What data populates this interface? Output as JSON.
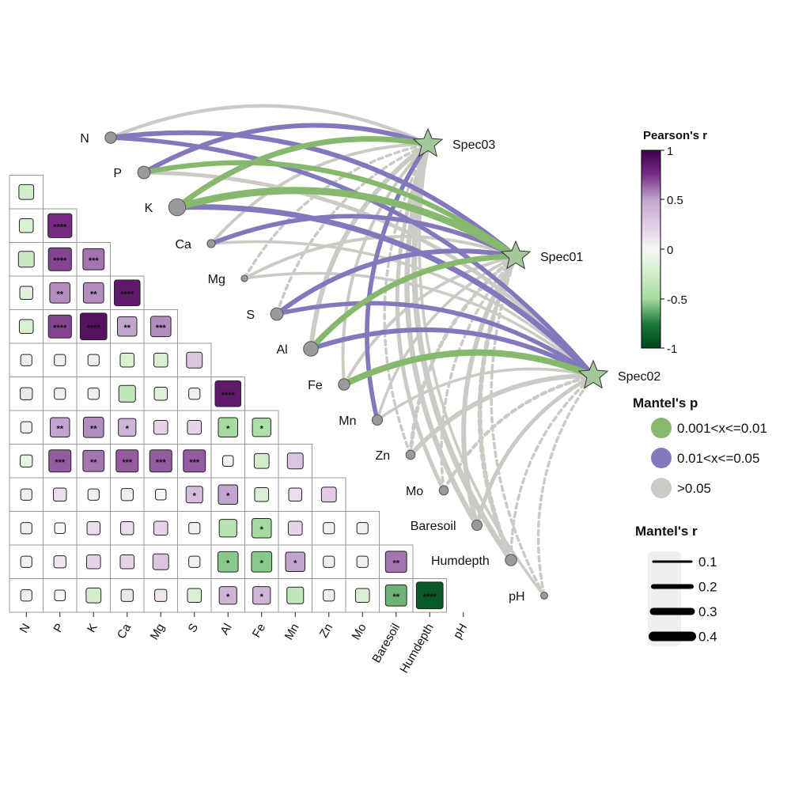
{
  "chart_data": {
    "type": "heatmap",
    "variables": [
      "N",
      "P",
      "K",
      "Ca",
      "Mg",
      "S",
      "Al",
      "Fe",
      "Mn",
      "Zn",
      "Mo",
      "Baresoil",
      "Humdepth",
      "pH"
    ],
    "correlation_lower": [
      [
        -0.25
      ],
      [
        -0.2,
        0.75
      ],
      [
        -0.3,
        0.7,
        0.6
      ],
      [
        -0.15,
        0.55,
        0.55,
        0.85
      ],
      [
        -0.2,
        0.7,
        0.9,
        0.5,
        0.55
      ],
      [
        0.05,
        0.05,
        0.05,
        -0.2,
        -0.2,
        0.3
      ],
      [
        0.1,
        0.05,
        0.05,
        -0.35,
        -0.15,
        0.05,
        0.85
      ],
      [
        0.05,
        0.5,
        0.55,
        0.4,
        0.2,
        0.2,
        -0.5,
        -0.45
      ],
      [
        -0.1,
        0.65,
        0.6,
        0.65,
        0.65,
        0.65,
        0.02,
        -0.25,
        0.3
      ],
      [
        0.05,
        0.15,
        0.05,
        -0.1,
        0.02,
        0.35,
        0.5,
        -0.2,
        0.15,
        0.25
      ],
      [
        0.05,
        0.02,
        0.15,
        0.15,
        0.2,
        0.05,
        -0.4,
        -0.5,
        0.2,
        0.05,
        0.05
      ],
      [
        0.05,
        0.1,
        0.2,
        0.2,
        0.3,
        0.05,
        -0.55,
        -0.55,
        0.5,
        0.05,
        0.05,
        0.6
      ],
      [
        0.05,
        0.02,
        -0.25,
        0.1,
        0.1,
        -0.2,
        0.4,
        0.4,
        -0.35,
        0.05,
        -0.2,
        -0.6,
        -0.9
      ]
    ],
    "significance_lower": [
      [
        ""
      ],
      [
        "",
        "****"
      ],
      [
        "",
        "****",
        "***"
      ],
      [
        "",
        "**",
        "**",
        "****"
      ],
      [
        "",
        "****",
        "****",
        "**",
        "***"
      ],
      [
        "",
        "",
        "",
        "",
        "",
        ""
      ],
      [
        "",
        "",
        "",
        "",
        "",
        "",
        "****"
      ],
      [
        "",
        "**",
        "**",
        "*",
        "",
        "",
        "*",
        "*"
      ],
      [
        "",
        "***",
        "**",
        "***",
        "***",
        "***",
        "",
        "",
        ""
      ],
      [
        "",
        "",
        "",
        "",
        "",
        "*",
        "*",
        "",
        "",
        ""
      ],
      [
        "",
        "",
        "",
        "",
        "",
        "",
        "",
        "*",
        "",
        "",
        ""
      ],
      [
        "",
        "",
        "",
        "",
        "",
        "",
        "*",
        "*",
        "*",
        "",
        "",
        "**"
      ],
      [
        "",
        "",
        "",
        "",
        "",
        "",
        "*",
        "*",
        "",
        "",
        "",
        "**",
        "****"
      ]
    ],
    "species": [
      "Spec03",
      "Spec01",
      "Spec02"
    ],
    "mantel": [
      {
        "spec": "Spec03",
        "env": "N",
        "r": 0.12,
        "p_class": "gray"
      },
      {
        "spec": "Spec03",
        "env": "P",
        "r": 0.2,
        "p_class": "purple"
      },
      {
        "spec": "Spec03",
        "env": "K",
        "r": 0.25,
        "p_class": "green"
      },
      {
        "spec": "Spec03",
        "env": "Ca",
        "r": 0.1,
        "p_class": "gray"
      },
      {
        "spec": "Spec03",
        "env": "Mg",
        "r": 0.08,
        "p_class": "gray",
        "dashed": true
      },
      {
        "spec": "Spec03",
        "env": "S",
        "r": 0.08,
        "p_class": "gray",
        "dashed": true
      },
      {
        "spec": "Spec03",
        "env": "Al",
        "r": 0.2,
        "p_class": "gray"
      },
      {
        "spec": "Spec03",
        "env": "Fe",
        "r": 0.1,
        "p_class": "gray"
      },
      {
        "spec": "Spec03",
        "env": "Mn",
        "r": 0.18,
        "p_class": "purple"
      },
      {
        "spec": "Spec03",
        "env": "Zn",
        "r": 0.08,
        "p_class": "gray",
        "dashed": true
      },
      {
        "spec": "Spec03",
        "env": "Mo",
        "r": 0.15,
        "p_class": "gray"
      },
      {
        "spec": "Spec03",
        "env": "Baresoil",
        "r": 0.22,
        "p_class": "gray"
      },
      {
        "spec": "Spec03",
        "env": "Humdepth",
        "r": 0.25,
        "p_class": "gray"
      },
      {
        "spec": "Spec03",
        "env": "pH",
        "r": 0.08,
        "p_class": "gray"
      },
      {
        "spec": "Spec01",
        "env": "N",
        "r": 0.2,
        "p_class": "purple"
      },
      {
        "spec": "Spec01",
        "env": "P",
        "r": 0.22,
        "p_class": "green"
      },
      {
        "spec": "Spec01",
        "env": "K",
        "r": 0.35,
        "p_class": "green"
      },
      {
        "spec": "Spec01",
        "env": "Ca",
        "r": 0.18,
        "p_class": "purple"
      },
      {
        "spec": "Spec01",
        "env": "Mg",
        "r": 0.1,
        "p_class": "gray"
      },
      {
        "spec": "Spec01",
        "env": "S",
        "r": 0.2,
        "p_class": "purple"
      },
      {
        "spec": "Spec01",
        "env": "Al",
        "r": 0.25,
        "p_class": "green"
      },
      {
        "spec": "Spec01",
        "env": "Fe",
        "r": 0.1,
        "p_class": "gray"
      },
      {
        "spec": "Spec01",
        "env": "Mn",
        "r": 0.08,
        "p_class": "gray"
      },
      {
        "spec": "Spec01",
        "env": "Zn",
        "r": 0.15,
        "p_class": "gray",
        "dashed": true
      },
      {
        "spec": "Spec01",
        "env": "Mo",
        "r": 0.08,
        "p_class": "gray",
        "dashed": true
      },
      {
        "spec": "Spec01",
        "env": "Baresoil",
        "r": 0.2,
        "p_class": "gray"
      },
      {
        "spec": "Spec01",
        "env": "Humdepth",
        "r": 0.2,
        "p_class": "gray",
        "dashed": true
      },
      {
        "spec": "Spec01",
        "env": "pH",
        "r": 0.08,
        "p_class": "gray",
        "dashed": true
      },
      {
        "spec": "Spec02",
        "env": "N",
        "r": 0.18,
        "p_class": "purple"
      },
      {
        "spec": "Spec02",
        "env": "P",
        "r": 0.15,
        "p_class": "gray"
      },
      {
        "spec": "Spec02",
        "env": "K",
        "r": 0.25,
        "p_class": "purple"
      },
      {
        "spec": "Spec02",
        "env": "Ca",
        "r": 0.08,
        "p_class": "gray"
      },
      {
        "spec": "Spec02",
        "env": "Mg",
        "r": 0.08,
        "p_class": "gray"
      },
      {
        "spec": "Spec02",
        "env": "S",
        "r": 0.18,
        "p_class": "purple"
      },
      {
        "spec": "Spec02",
        "env": "Al",
        "r": 0.2,
        "p_class": "purple"
      },
      {
        "spec": "Spec02",
        "env": "Fe",
        "r": 0.3,
        "p_class": "green"
      },
      {
        "spec": "Spec02",
        "env": "Mn",
        "r": 0.08,
        "p_class": "gray"
      },
      {
        "spec": "Spec02",
        "env": "Zn",
        "r": 0.2,
        "p_class": "gray"
      },
      {
        "spec": "Spec02",
        "env": "Mo",
        "r": 0.12,
        "p_class": "gray",
        "dashed": true
      },
      {
        "spec": "Spec02",
        "env": "Baresoil",
        "r": 0.15,
        "p_class": "gray"
      },
      {
        "spec": "Spec02",
        "env": "Humdepth",
        "r": 0.08,
        "p_class": "gray",
        "dashed": true
      },
      {
        "spec": "Spec02",
        "env": "pH",
        "r": 0.08,
        "p_class": "gray",
        "dashed": true
      }
    ],
    "env_node_size": {
      "N": 0.3,
      "P": 0.35,
      "K": 0.55,
      "Ca": 0.15,
      "Mg": 0.08,
      "S": 0.35,
      "Al": 0.45,
      "Fe": 0.3,
      "Mn": 0.25,
      "Zn": 0.2,
      "Mo": 0.2,
      "Baresoil": 0.25,
      "Humdepth": 0.3,
      "pH": 0.1
    },
    "colors": {
      "green": "#86b86e",
      "purple": "#8279bd",
      "gray": "#cbcbc6",
      "star": "#a3c99a",
      "node": "#9a9a9a",
      "colorbar_top": "#40004b",
      "colorbar_mid": "#f7f7f7",
      "colorbar_bottom": "#00441b"
    }
  },
  "colorbar": {
    "title": "Pearson's r",
    "ticks": [
      "1",
      "0.5",
      "0",
      "-0.5",
      "-1"
    ]
  },
  "legend_p": {
    "title": "Mantel's p",
    "items": [
      {
        "label": "0.001<x<=0.01",
        "color_key": "green"
      },
      {
        "label": "0.01<x<=0.05",
        "color_key": "purple"
      },
      {
        "label": ">0.05",
        "color_key": "gray"
      }
    ]
  },
  "legend_r": {
    "title": "Mantel's r",
    "items": [
      "0.1",
      "0.2",
      "0.3",
      "0.4"
    ]
  }
}
